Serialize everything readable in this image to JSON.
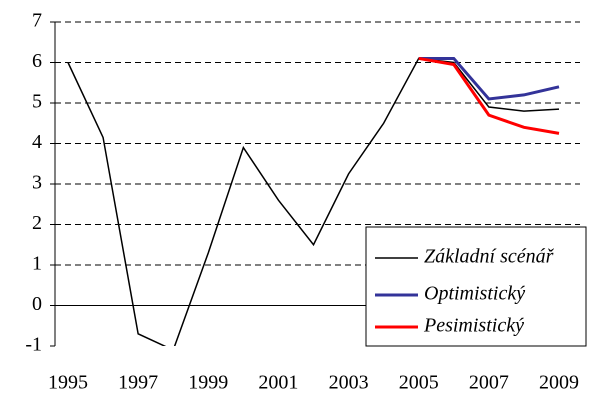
{
  "chart_data": {
    "type": "line",
    "x": [
      1995,
      1996,
      1997,
      1998,
      1999,
      2000,
      2001,
      2002,
      2003,
      2004,
      2005,
      2006,
      2007,
      2008,
      2009
    ],
    "series": [
      {
        "name": "Základní scénář",
        "color": "#000000",
        "values": [
          6.0,
          4.15,
          -0.7,
          -1.1,
          1.3,
          3.9,
          2.6,
          1.5,
          3.25,
          4.5,
          6.1,
          6.0,
          4.9,
          4.8,
          4.85
        ]
      },
      {
        "name": "Optimistický",
        "color": "#333399",
        "values": [
          null,
          null,
          null,
          null,
          null,
          null,
          null,
          null,
          null,
          null,
          6.1,
          6.1,
          5.1,
          5.2,
          5.4
        ]
      },
      {
        "name": "Pesimistický",
        "color": "#ff0000",
        "values": [
          null,
          null,
          null,
          null,
          null,
          null,
          null,
          null,
          null,
          null,
          6.1,
          5.95,
          4.7,
          4.4,
          4.25
        ]
      }
    ],
    "xlim": [
      1995,
      2009
    ],
    "xticks": [
      1995,
      1997,
      1999,
      2001,
      2003,
      2005,
      2007,
      2009
    ],
    "ylim": [
      -1,
      7
    ],
    "yticks": [
      -1,
      0,
      1,
      2,
      3,
      4,
      5,
      6,
      7
    ],
    "grid": true,
    "legend": "lower-right"
  }
}
